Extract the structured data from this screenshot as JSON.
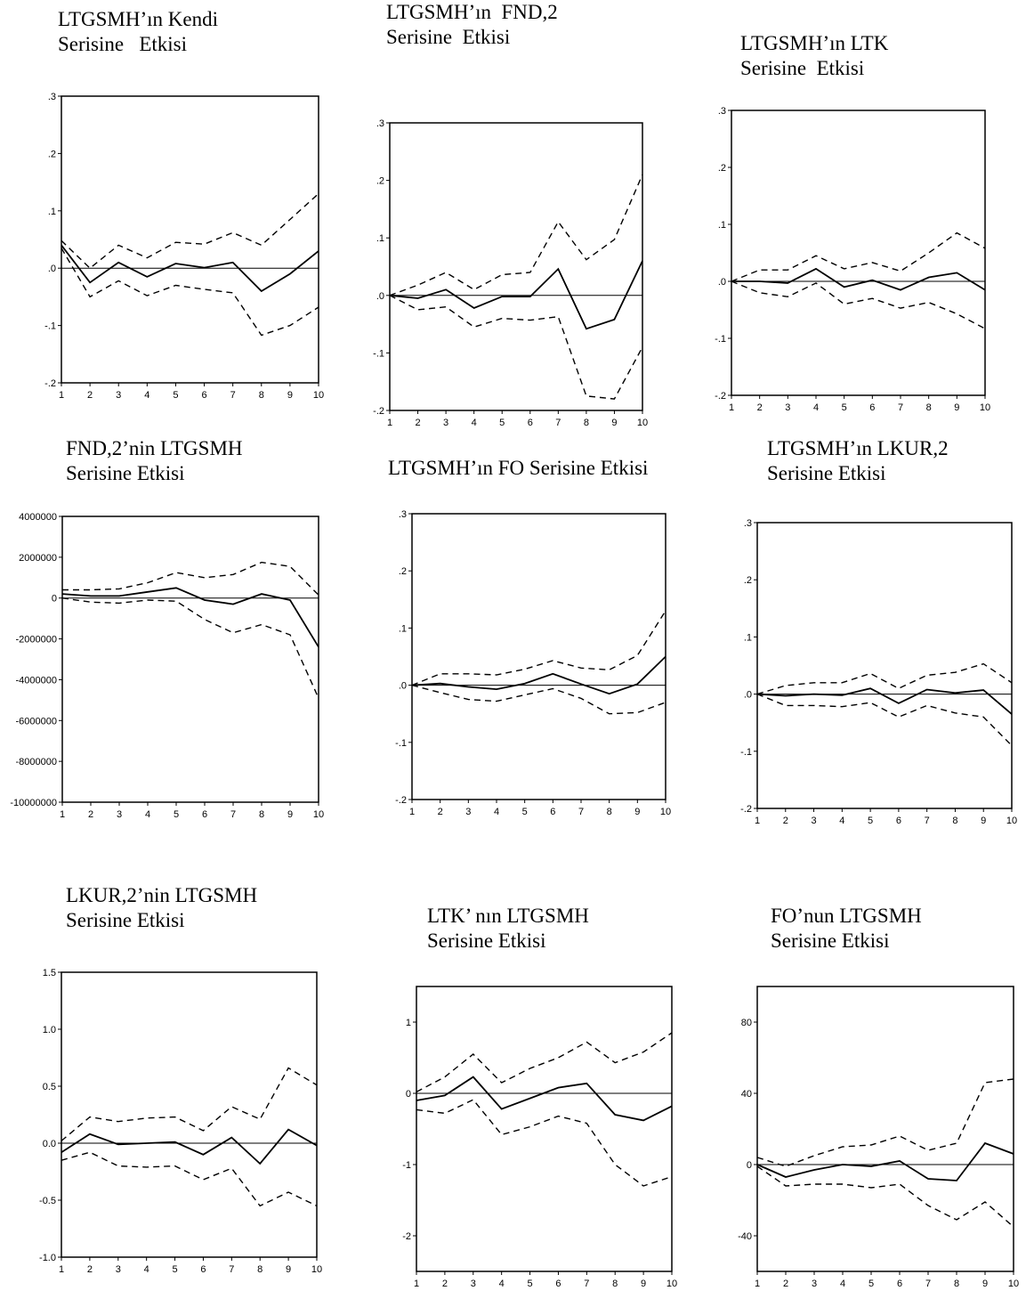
{
  "chart_data": [
    {
      "type": "line",
      "title_line1": "LTGSMH’ın Kendi",
      "title_line2": "Serisine   Etkisi",
      "x": [
        1,
        2,
        3,
        4,
        5,
        6,
        7,
        8,
        9,
        10
      ],
      "ylim": [
        -0.2,
        0.3
      ],
      "yticks": [
        0.3,
        0.2,
        0.1,
        0.0,
        -0.1,
        -0.2
      ],
      "ytick_labels": [
        ".3",
        ".2",
        ".1",
        ".0",
        "-.1",
        "-.2"
      ],
      "series": [
        {
          "role": "response",
          "values": [
            0.04,
            -0.025,
            0.01,
            -0.015,
            0.008,
            0.001,
            0.01,
            -0.04,
            -0.01,
            0.03
          ]
        },
        {
          "role": "upper",
          "values": [
            0.048,
            0.0,
            0.04,
            0.018,
            0.045,
            0.042,
            0.062,
            0.04,
            0.085,
            0.13
          ]
        },
        {
          "role": "lower",
          "values": [
            0.035,
            -0.05,
            -0.022,
            -0.048,
            -0.03,
            -0.037,
            -0.043,
            -0.117,
            -0.1,
            -0.068
          ]
        }
      ]
    },
    {
      "type": "line",
      "title_line1": "LTGSMH’ın  FND,2",
      "title_line2": "Serisine  Etkisi",
      "x": [
        1,
        2,
        3,
        4,
        5,
        6,
        7,
        8,
        9,
        10
      ],
      "ylim": [
        -0.2,
        0.3
      ],
      "yticks": [
        0.3,
        0.2,
        0.1,
        0.0,
        -0.1,
        -0.2
      ],
      "ytick_labels": [
        ".3",
        ".2",
        ".1",
        ".0",
        "-.1",
        "-.2"
      ],
      "series": [
        {
          "role": "response",
          "values": [
            0.0,
            -0.005,
            0.01,
            -0.022,
            -0.002,
            -0.002,
            0.046,
            -0.058,
            -0.042,
            0.06
          ]
        },
        {
          "role": "upper",
          "values": [
            0.0,
            0.018,
            0.04,
            0.01,
            0.036,
            0.04,
            0.128,
            0.062,
            0.097,
            0.21
          ]
        },
        {
          "role": "lower",
          "values": [
            0.0,
            -0.025,
            -0.02,
            -0.055,
            -0.04,
            -0.043,
            -0.037,
            -0.175,
            -0.18,
            -0.09
          ]
        }
      ]
    },
    {
      "type": "line",
      "title_line1": "LTGSMH’ın LTK",
      "title_line2": "Serisine  Etkisi",
      "x": [
        1,
        2,
        3,
        4,
        5,
        6,
        7,
        8,
        9,
        10
      ],
      "ylim": [
        -0.2,
        0.3
      ],
      "yticks": [
        0.3,
        0.2,
        0.1,
        0.0,
        -0.1,
        -0.2
      ],
      "ytick_labels": [
        ".3",
        ".2",
        ".1",
        ".0",
        "-.1",
        "-.2"
      ],
      "series": [
        {
          "role": "response",
          "values": [
            0.0,
            0.0,
            -0.003,
            0.022,
            -0.01,
            0.002,
            -0.015,
            0.007,
            0.015,
            -0.015
          ]
        },
        {
          "role": "upper",
          "values": [
            0.0,
            0.02,
            0.02,
            0.045,
            0.022,
            0.033,
            0.018,
            0.05,
            0.085,
            0.058
          ]
        },
        {
          "role": "lower",
          "values": [
            0.0,
            -0.02,
            -0.027,
            -0.003,
            -0.04,
            -0.03,
            -0.047,
            -0.037,
            -0.057,
            -0.083
          ]
        }
      ]
    },
    {
      "type": "line",
      "title_line1": "FND,2’nin LTGSMH",
      "title_line2": "Serisine Etkisi",
      "x": [
        1,
        2,
        3,
        4,
        5,
        6,
        7,
        8,
        9,
        10
      ],
      "ylim": [
        -10000000,
        4000000
      ],
      "yticks": [
        4000000,
        2000000,
        0,
        -2000000,
        -4000000,
        -6000000,
        -8000000,
        -10000000
      ],
      "ytick_labels": [
        "4000000",
        "2000000",
        "0",
        "-2000000",
        "-4000000",
        "-6000000",
        "-8000000",
        "-10000000"
      ],
      "series": [
        {
          "role": "response",
          "values": [
            200000,
            100000,
            100000,
            300000,
            500000,
            -100000,
            -300000,
            200000,
            -100000,
            -2400000
          ]
        },
        {
          "role": "upper",
          "values": [
            400000,
            400000,
            450000,
            750000,
            1250000,
            1000000,
            1150000,
            1750000,
            1550000,
            150000
          ]
        },
        {
          "role": "lower",
          "values": [
            0,
            -200000,
            -250000,
            -100000,
            -150000,
            -1050000,
            -1700000,
            -1300000,
            -1800000,
            -4900000
          ]
        }
      ]
    },
    {
      "type": "line",
      "title_line1": "LTGSMH’ın FO Serisine Etkisi",
      "title_line2": "",
      "x": [
        1,
        2,
        3,
        4,
        5,
        6,
        7,
        8,
        9,
        10
      ],
      "ylim": [
        -0.2,
        0.3
      ],
      "yticks": [
        0.3,
        0.2,
        0.1,
        0.0,
        -0.1,
        -0.2
      ],
      "ytick_labels": [
        ".3",
        ".2",
        ".1",
        ".0",
        "-.1",
        "-.2"
      ],
      "series": [
        {
          "role": "response",
          "values": [
            0.0,
            0.003,
            -0.003,
            -0.007,
            0.003,
            0.02,
            0.002,
            -0.015,
            0.002,
            0.05
          ]
        },
        {
          "role": "upper",
          "values": [
            0.0,
            0.02,
            0.02,
            0.018,
            0.028,
            0.043,
            0.03,
            0.027,
            0.052,
            0.13
          ]
        },
        {
          "role": "lower",
          "values": [
            0.0,
            -0.013,
            -0.025,
            -0.028,
            -0.017,
            -0.006,
            -0.023,
            -0.05,
            -0.048,
            -0.03
          ]
        }
      ]
    },
    {
      "type": "line",
      "title_line1": "LTGSMH’ın LKUR,2",
      "title_line2": "Serisine Etkisi",
      "x": [
        1,
        2,
        3,
        4,
        5,
        6,
        7,
        8,
        9,
        10
      ],
      "ylim": [
        -0.2,
        0.3
      ],
      "yticks": [
        0.3,
        0.2,
        0.1,
        0.0,
        -0.1,
        -0.2
      ],
      "ytick_labels": [
        ".3",
        ".2",
        ".1",
        ".0",
        "-.1",
        "-.2"
      ],
      "series": [
        {
          "role": "response",
          "values": [
            0.0,
            -0.003,
            0.0,
            -0.002,
            0.01,
            -0.016,
            0.008,
            0.002,
            0.007,
            -0.035
          ]
        },
        {
          "role": "upper",
          "values": [
            0.0,
            0.015,
            0.02,
            0.02,
            0.036,
            0.01,
            0.033,
            0.038,
            0.053,
            0.02
          ]
        },
        {
          "role": "lower",
          "values": [
            0.0,
            -0.02,
            -0.02,
            -0.022,
            -0.015,
            -0.04,
            -0.02,
            -0.033,
            -0.04,
            -0.09
          ]
        }
      ]
    },
    {
      "type": "line",
      "title_line1": "LKUR,2’nin LTGSMH",
      "title_line2": "Serisine Etkisi",
      "x": [
        1,
        2,
        3,
        4,
        5,
        6,
        7,
        8,
        9,
        10
      ],
      "ylim": [
        -1.0,
        1.5
      ],
      "yticks": [
        1.5,
        1.0,
        0.5,
        0.0,
        -0.5,
        -1.0
      ],
      "ytick_labels": [
        "1.5",
        "1.0",
        "0.5",
        "0.0",
        "-0.5",
        "-1.0"
      ],
      "series": [
        {
          "role": "response",
          "values": [
            -0.08,
            0.08,
            -0.01,
            0.0,
            0.01,
            -0.1,
            0.05,
            -0.18,
            0.12,
            -0.02
          ]
        },
        {
          "role": "upper",
          "values": [
            0.02,
            0.23,
            0.19,
            0.22,
            0.23,
            0.11,
            0.32,
            0.21,
            0.66,
            0.51
          ]
        },
        {
          "role": "lower",
          "values": [
            -0.15,
            -0.08,
            -0.2,
            -0.21,
            -0.2,
            -0.32,
            -0.22,
            -0.55,
            -0.43,
            -0.55
          ]
        }
      ]
    },
    {
      "type": "line",
      "title_line1": "LTK’ nın LTGSMH",
      "title_line2": "Serisine Etkisi",
      "x": [
        1,
        2,
        3,
        4,
        5,
        6,
        7,
        8,
        9,
        10
      ],
      "ylim": [
        -2.5,
        1.5
      ],
      "yticks": [
        1,
        0,
        -1,
        -2
      ],
      "ytick_labels": [
        "1",
        "0",
        "-1",
        "-2"
      ],
      "series": [
        {
          "role": "response",
          "values": [
            -0.1,
            -0.03,
            0.23,
            -0.22,
            -0.07,
            0.08,
            0.14,
            -0.3,
            -0.38,
            -0.18
          ]
        },
        {
          "role": "upper",
          "values": [
            0.02,
            0.23,
            0.55,
            0.15,
            0.35,
            0.5,
            0.72,
            0.43,
            0.58,
            0.85
          ]
        },
        {
          "role": "lower",
          "values": [
            -0.23,
            -0.28,
            -0.09,
            -0.58,
            -0.47,
            -0.32,
            -0.42,
            -1.0,
            -1.3,
            -1.17
          ]
        }
      ]
    },
    {
      "type": "line",
      "title_line1": "FO’nun LTGSMH",
      "title_line2": "Serisine Etkisi",
      "x": [
        1,
        2,
        3,
        4,
        5,
        6,
        7,
        8,
        9,
        10
      ],
      "ylim": [
        -60,
        100
      ],
      "yticks": [
        80,
        40,
        0,
        -40
      ],
      "ytick_labels": [
        "80",
        "40",
        "0",
        "-40"
      ],
      "series": [
        {
          "role": "response",
          "values": [
            0,
            -7,
            -3,
            0,
            -1,
            2,
            -8,
            -9,
            12,
            6
          ]
        },
        {
          "role": "upper",
          "values": [
            4,
            -1,
            5,
            10,
            11,
            16,
            8,
            12,
            46,
            48
          ]
        },
        {
          "role": "lower",
          "values": [
            -1,
            -12,
            -11,
            -11,
            -13,
            -11,
            -23,
            -31,
            -21,
            -35
          ]
        }
      ]
    }
  ]
}
